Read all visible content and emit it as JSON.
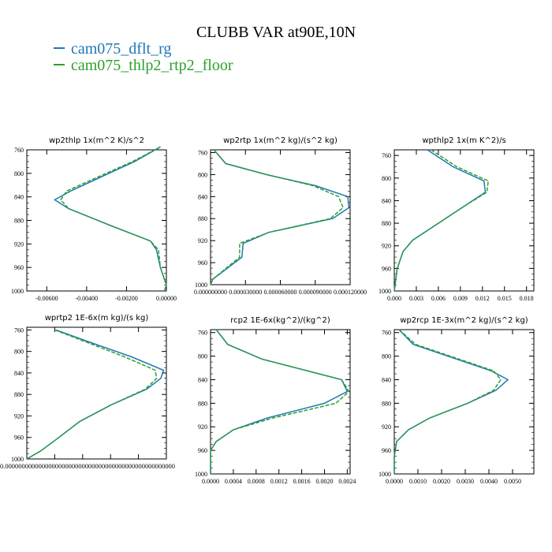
{
  "title": "CLUBB VAR at90E,10N",
  "legend": [
    {
      "label": "cam075_dflt_rg",
      "color": "#1f77b4"
    },
    {
      "label": "cam075_thlp2_rtp2_floor",
      "color": "#2ca02c"
    }
  ],
  "chart_data": [
    {
      "type": "line",
      "title": "wp2thlp   1x(m^2 K)/s^2",
      "xlim": [
        -0.007,
        0.0
      ],
      "ylim": [
        760,
        1000
      ],
      "xticks": [
        "-0.00600",
        "-0.00400",
        "-0.00200",
        "0.00000"
      ],
      "yticks": [
        "760",
        "800",
        "840",
        "880",
        "920",
        "960",
        "1000"
      ],
      "xtick_values": [
        -0.006,
        -0.004,
        -0.002,
        0.0
      ],
      "ytick_values": [
        760,
        800,
        840,
        880,
        920,
        960,
        1000
      ],
      "y": [
        755,
        780,
        830,
        845,
        860,
        890,
        915,
        930,
        960,
        990,
        1000
      ],
      "series": [
        {
          "name": "cam075_dflt_rg",
          "values": [
            -0.0003,
            -0.0016,
            -0.0048,
            -0.0056,
            -0.0049,
            -0.0027,
            -0.0008,
            -0.0005,
            -0.0003,
            0.0,
            -0.0001
          ]
        },
        {
          "name": "cam075_thlp2_rtp2_floor",
          "values": [
            -0.0003,
            -0.0017,
            -0.005,
            -0.0053,
            -0.0049,
            -0.0027,
            -0.0008,
            -0.0004,
            -0.0003,
            0.0,
            -0.0001
          ]
        }
      ]
    },
    {
      "type": "line",
      "title": "wp2rtp   1x(m^2 kg)/(s^2 kg)",
      "xlim": [
        0.0,
        0.00012
      ],
      "ylim": [
        755,
        1000
      ],
      "xticks": [
        "0.000000000",
        "0.000030000",
        "0.000060000",
        "0.000090000",
        "0.000120000"
      ],
      "yticks": [
        "760",
        "800",
        "840",
        "880",
        "920",
        "960",
        "1000"
      ],
      "xtick_values": [
        0.0,
        3e-05,
        6e-05,
        9e-05,
        0.00012
      ],
      "ytick_values": [
        760,
        800,
        840,
        880,
        920,
        960,
        1000
      ],
      "y": [
        755,
        780,
        800,
        820,
        840,
        860,
        880,
        905,
        925,
        950,
        990,
        1000
      ],
      "series": [
        {
          "name": "cam075_dflt_rg",
          "values": [
            3e-06,
            1.3e-05,
            4.8e-05,
            9e-05,
            0.000118,
            0.000119,
            0.000105,
            5e-05,
            2.8e-05,
            2.7e-05,
            2e-06,
            0.0
          ]
        },
        {
          "name": "cam075_thlp2_rtp2_floor",
          "values": [
            3e-06,
            1.3e-05,
            4.8e-05,
            8.8e-05,
            0.00011,
            0.000114,
            0.000103,
            5e-05,
            2.5e-05,
            2.5e-05,
            2e-06,
            0.0
          ]
        }
      ]
    },
    {
      "type": "line",
      "title": "wpthlp2   1x(m K^2)/s",
      "xlim": [
        0.0,
        0.019
      ],
      "ylim": [
        750,
        1000
      ],
      "xticks": [
        "0.000",
        "0.003",
        "0.006",
        "0.009",
        "0.012",
        "0.015",
        "0.018"
      ],
      "yticks": [
        "760",
        "800",
        "840",
        "880",
        "920",
        "960",
        "1000"
      ],
      "xtick_values": [
        0.0,
        0.003,
        0.006,
        0.009,
        0.012,
        0.015,
        0.018
      ],
      "ytick_values": [
        760,
        800,
        840,
        880,
        920,
        960,
        1000
      ],
      "y": [
        750,
        780,
        805,
        825,
        850,
        880,
        910,
        930,
        960,
        990,
        1000
      ],
      "series": [
        {
          "name": "cam075_dflt_rg",
          "values": [
            0.0045,
            0.008,
            0.0122,
            0.0124,
            0.0095,
            0.006,
            0.0025,
            0.0012,
            0.0004,
            0.0001,
            0.0
          ]
        },
        {
          "name": "cam075_thlp2_rtp2_floor",
          "values": [
            0.005,
            0.0085,
            0.0128,
            0.0126,
            0.0095,
            0.006,
            0.0025,
            0.0012,
            0.0004,
            0.0001,
            0.0
          ]
        }
      ]
    },
    {
      "type": "line",
      "title": "wprtp2   1E-6x(m kg)/(s kg)",
      "xlim": [
        0.0,
        1.0
      ],
      "ylim": [
        755,
        1000
      ],
      "xticks": [],
      "xticks_text": "0.000000000000000000000000000000000000000000000000000",
      "yticks": [
        "760",
        "800",
        "840",
        "880",
        "920",
        "960",
        "1000"
      ],
      "ytick_values": [
        760,
        800,
        840,
        880,
        920,
        960,
        1000
      ],
      "y": [
        760,
        780,
        810,
        835,
        850,
        870,
        900,
        930,
        960,
        985,
        1000
      ],
      "series": [
        {
          "name": "cam075_dflt_rg",
          "values": [
            0.21,
            0.42,
            0.75,
            0.98,
            0.96,
            0.86,
            0.6,
            0.38,
            0.23,
            0.1,
            0.0
          ]
        },
        {
          "name": "cam075_thlp2_rtp2_floor",
          "values": [
            0.2,
            0.4,
            0.7,
            0.92,
            0.93,
            0.85,
            0.6,
            0.38,
            0.23,
            0.1,
            0.0
          ]
        }
      ]
    },
    {
      "type": "line",
      "title": "rcp2   1E-6x(kg^2)/(kg^2)",
      "xlim": [
        0.0,
        0.00245
      ],
      "ylim": [
        755,
        1000
      ],
      "xticks": [
        "0.0000",
        "0.0004",
        "0.0008",
        "0.0012",
        "0.0016",
        "0.0020",
        "0.0024"
      ],
      "yticks": [
        "760",
        "800",
        "840",
        "880",
        "920",
        "960",
        "1000"
      ],
      "xtick_values": [
        0.0,
        0.0004,
        0.0008,
        0.0012,
        0.0016,
        0.002,
        0.0024
      ],
      "ytick_values": [
        760,
        800,
        840,
        880,
        920,
        960,
        1000
      ],
      "y": [
        755,
        780,
        805,
        840,
        860,
        880,
        905,
        925,
        945,
        960,
        975,
        1000
      ],
      "series": [
        {
          "name": "cam075_dflt_rg",
          "values": [
            0.0001,
            0.0003,
            0.0009,
            0.0023,
            0.0024,
            0.002,
            0.001,
            0.0004,
            0.0001,
            0.0,
            0.0,
            0.0
          ]
        },
        {
          "name": "cam075_thlp2_rtp2_floor",
          "values": [
            0.0001,
            0.0003,
            0.0009,
            0.0023,
            0.00243,
            0.0022,
            0.0011,
            0.0004,
            0.0001,
            0.0,
            0.0,
            0.0
          ]
        }
      ]
    },
    {
      "type": "line",
      "title": "wp2rcp   1E-3x(m^2 kg)/(s^2 kg)",
      "xlim": [
        0.0,
        0.0059
      ],
      "ylim": [
        755,
        1000
      ],
      "xticks": [
        "0.0000",
        "0.0010",
        "0.0020",
        "0.0030",
        "0.0040",
        "0.0050"
      ],
      "yticks": [
        "760",
        "800",
        "840",
        "880",
        "920",
        "960",
        "1000"
      ],
      "xtick_values": [
        0.0,
        0.001,
        0.002,
        0.003,
        0.004,
        0.005
      ],
      "ytick_values": [
        760,
        800,
        840,
        880,
        920,
        960,
        1000
      ],
      "y": [
        755,
        780,
        825,
        840,
        858,
        880,
        905,
        925,
        945,
        970,
        1000
      ],
      "series": [
        {
          "name": "cam075_dflt_rg",
          "values": [
            0.0002,
            0.0008,
            0.0041,
            0.0048,
            0.0043,
            0.0031,
            0.0015,
            0.0006,
            0.0001,
            0.0,
            0.0
          ]
        },
        {
          "name": "cam075_thlp2_rtp2_floor",
          "values": [
            0.0002,
            0.0009,
            0.0042,
            0.0045,
            0.0042,
            0.0031,
            0.0015,
            0.0006,
            0.0001,
            0.0,
            0.0
          ]
        }
      ]
    }
  ]
}
